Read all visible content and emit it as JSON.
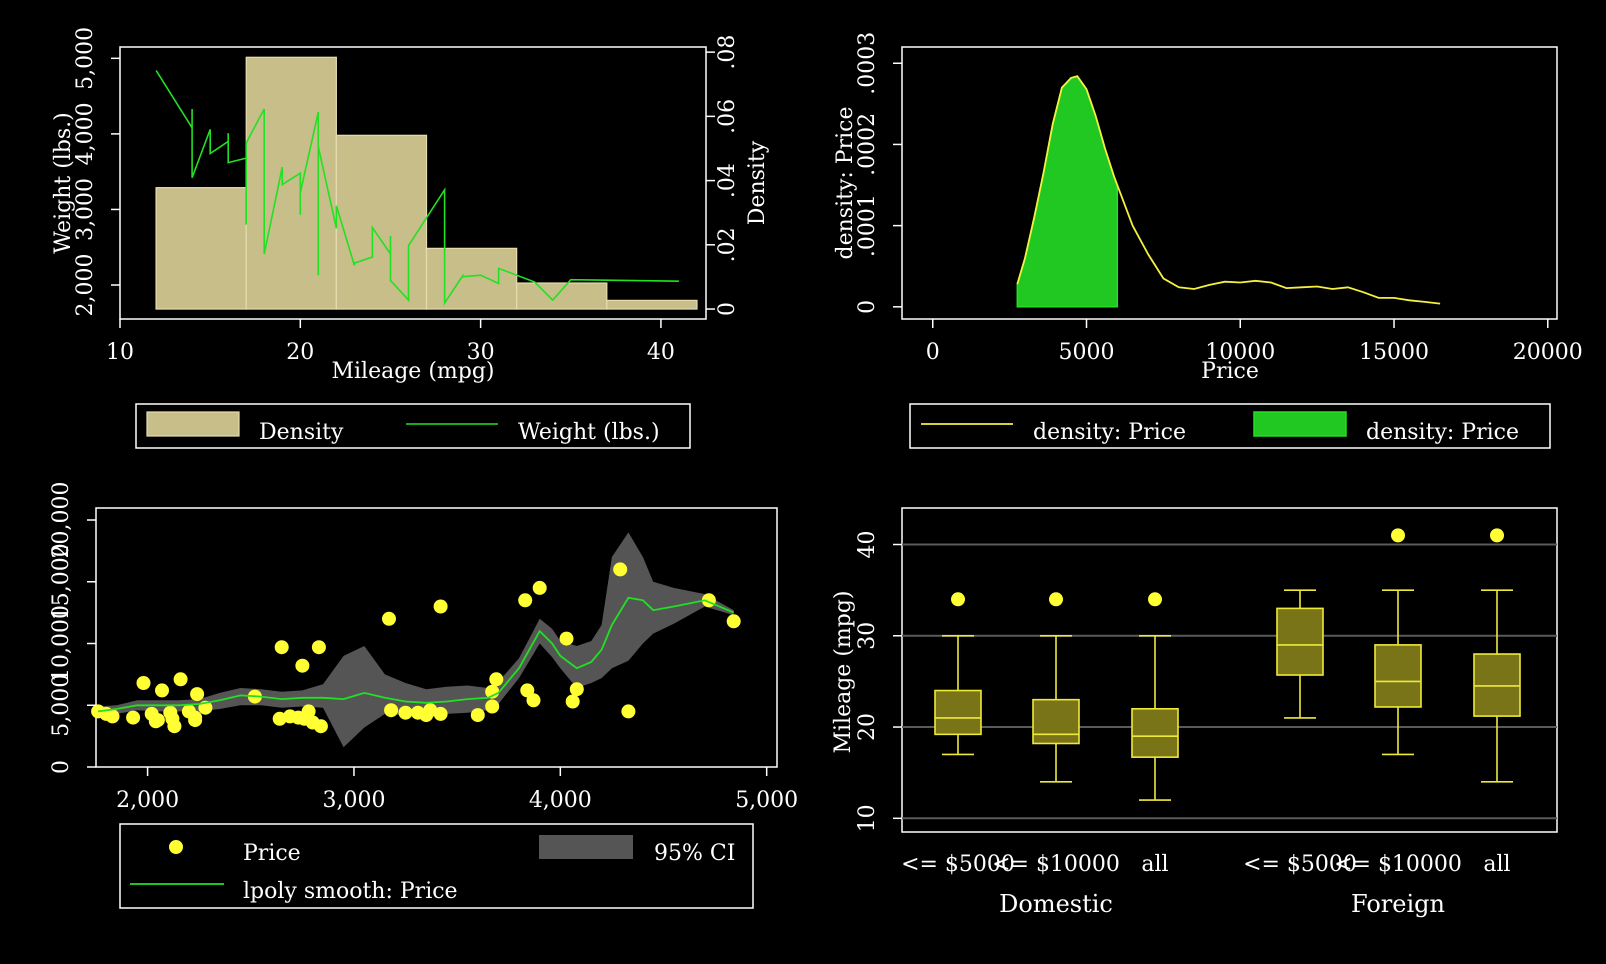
{
  "colors": {
    "background": "#000000",
    "foreground": "#ffffff",
    "hist_fill": "#c8be8a",
    "hist_stroke": "#e6dcae",
    "green": "#22e022",
    "green_fill": "#22c822",
    "yellow": "#ffff33",
    "yellow_line": "#f5f040",
    "ci_gray": "#555555",
    "box_fill": "#7a7418",
    "box_stroke": "#eeea3a",
    "gridline": "#5a5a5a"
  },
  "chart_data": [
    {
      "id": "panel1",
      "type": "bar",
      "xlabel": "Mileage (mpg)",
      "ylabel": "Weight (lbs.)",
      "y2label": "Density",
      "xlim": [
        10,
        42.5
      ],
      "ylim": [
        1550,
        5150
      ],
      "y2lim": [
        -0.0031,
        0.0816
      ],
      "xticks": [
        10,
        20,
        30,
        40
      ],
      "xtick_labels": [
        "10",
        "20",
        "30",
        "40"
      ],
      "yticks": [
        2000,
        3000,
        4000,
        5000
      ],
      "ytick_labels": [
        "2,000",
        "3,000",
        "4,000",
        "5,000"
      ],
      "y2ticks": [
        0,
        0.02,
        0.04,
        0.06,
        0.08
      ],
      "y2tick_labels": [
        "0",
        ".02",
        ".04",
        ".06",
        ".08"
      ],
      "bins": [
        {
          "x0": 12,
          "x1": 17,
          "density": 0.0378
        },
        {
          "x0": 17,
          "x1": 22,
          "density": 0.0784
        },
        {
          "x0": 22,
          "x1": 27,
          "density": 0.0541
        },
        {
          "x0": 27,
          "x1": 32,
          "density": 0.0189
        },
        {
          "x0": 32,
          "x1": 37,
          "density": 0.0081
        },
        {
          "x0": 37,
          "x1": 42,
          "density": 0.0027
        }
      ],
      "weight_line": {
        "x": [
          12,
          14,
          14,
          14,
          15,
          15,
          16,
          16,
          16,
          17,
          17,
          17,
          18,
          18,
          18,
          19,
          19,
          19,
          20,
          20,
          20,
          21,
          21,
          21,
          22,
          22,
          23,
          23,
          24,
          24,
          25,
          25,
          25,
          26,
          26,
          28,
          28,
          29,
          29,
          30,
          31,
          31,
          33,
          34,
          35,
          41
        ],
        "y": [
          4840,
          4080,
          4330,
          3420,
          4060,
          3740,
          3900,
          4010,
          3620,
          3680,
          2800,
          3880,
          4330,
          3790,
          2410,
          3560,
          3400,
          3330,
          3480,
          2930,
          3220,
          4290,
          2130,
          3830,
          2750,
          3050,
          2260,
          2290,
          2370,
          2760,
          2410,
          2650,
          2060,
          1800,
          2520,
          3260,
          1760,
          2120,
          2110,
          2130,
          2020,
          2220,
          2040,
          1800,
          2070,
          2050
        ]
      },
      "legend": [
        {
          "label": "Density",
          "kind": "patch"
        },
        {
          "label": "Weight (lbs.)",
          "kind": "line"
        }
      ]
    },
    {
      "id": "panel2",
      "type": "area",
      "xlabel": "Price",
      "ylabel": "density: Price",
      "xlim": [
        -1000,
        20300
      ],
      "ylim": [
        -1.5e-05,
        0.00032
      ],
      "xticks": [
        0,
        5000,
        10000,
        15000,
        20000
      ],
      "xtick_labels": [
        "0",
        "5000",
        "10000",
        "15000",
        "20000"
      ],
      "yticks": [
        0,
        0.0001,
        0.0002,
        0.0003
      ],
      "ytick_labels": [
        "0",
        ".0001",
        ".0002",
        ".0003"
      ],
      "density_line": {
        "x": [
          2750,
          3000,
          3300,
          3600,
          3900,
          4200,
          4500,
          4700,
          5000,
          5300,
          5600,
          5900,
          6100,
          6500,
          7000,
          7500,
          8000,
          8500,
          9000,
          9500,
          10000,
          10500,
          11000,
          11500,
          12000,
          12500,
          13000,
          13500,
          14000,
          14500,
          15000,
          15500,
          16000,
          16500
        ],
        "y": [
          2.8e-05,
          6e-05,
          0.00011,
          0.000165,
          0.000225,
          0.00027,
          0.000282,
          0.000284,
          0.000268,
          0.000235,
          0.000195,
          0.00016,
          0.00014,
          0.0001,
          6.5e-05,
          3.5e-05,
          2.4e-05,
          2.2e-05,
          2.7e-05,
          3.1e-05,
          3e-05,
          3.2e-05,
          3e-05,
          2.3e-05,
          2.4e-05,
          2.5e-05,
          2.2e-05,
          2.4e-05,
          1.8e-05,
          1.1e-05,
          1.1e-05,
          8e-06,
          6e-06,
          4e-06
        ]
      },
      "shade_range": [
        2750,
        6000
      ],
      "legend": [
        {
          "label": "density: Price",
          "kind": "line"
        },
        {
          "label": "density: Price",
          "kind": "patch"
        }
      ]
    },
    {
      "id": "panel3",
      "type": "scatter",
      "xlim": [
        1750,
        5050
      ],
      "ylim": [
        0,
        20000
      ],
      "xticks": [
        2000,
        3000,
        4000,
        5000
      ],
      "xtick_labels": [
        "2,000",
        "3,000",
        "4,000",
        "5,000"
      ],
      "yticks": [
        0,
        5000,
        10000,
        15000,
        20000
      ],
      "ytick_labels": [
        "0",
        "5,000",
        "10,000",
        "15,000",
        "20,000"
      ],
      "points": {
        "x": [
          1760,
          1800,
          1830,
          1930,
          1980,
          2020,
          2040,
          2050,
          2070,
          2110,
          2120,
          2130,
          2160,
          2200,
          2230,
          2230,
          2240,
          2280,
          2520,
          2640,
          2650,
          2690,
          2730,
          2750,
          2760,
          2780,
          2800,
          2830,
          2840,
          3170,
          3180,
          3250,
          3310,
          3350,
          3370,
          3420,
          3420,
          3600,
          3670,
          3670,
          3690,
          3830,
          3840,
          3870,
          3900,
          4030,
          4060,
          4080,
          4290,
          4330,
          4720,
          4840
        ],
        "y": [
          4500,
          4300,
          4100,
          4000,
          6800,
          4300,
          3700,
          3800,
          6200,
          4400,
          3900,
          3300,
          7100,
          4500,
          3800,
          4000,
          5900,
          4800,
          5700,
          3900,
          9700,
          4100,
          4000,
          8200,
          3900,
          4500,
          3600,
          9700,
          3300,
          12000,
          4600,
          4400,
          4400,
          4200,
          4600,
          4300,
          13000,
          4200,
          4900,
          6100,
          7100,
          13500,
          6200,
          5400,
          14500,
          10400,
          5300,
          6300,
          16000,
          4500,
          13500,
          11800
        ]
      },
      "smooth": {
        "x": [
          1760,
          1850,
          1950,
          2050,
          2150,
          2250,
          2350,
          2450,
          2550,
          2650,
          2750,
          2850,
          2950,
          3050,
          3150,
          3250,
          3350,
          3450,
          3550,
          3650,
          3700,
          3800,
          3900,
          3960,
          4000,
          4080,
          4150,
          4200,
          4250,
          4330,
          4400,
          4450,
          4550,
          4700,
          4840
        ],
        "y": [
          4500,
          4700,
          5000,
          5000,
          5000,
          5100,
          5400,
          5800,
          5700,
          5500,
          5600,
          5600,
          5500,
          6000,
          5600,
          5300,
          5200,
          5300,
          5500,
          5600,
          6000,
          8000,
          11000,
          10000,
          9000,
          8000,
          8500,
          9500,
          11500,
          13700,
          13500,
          12700,
          13000,
          13500,
          12500
        ],
        "ci_upper": [
          4900,
          5000,
          5400,
          5400,
          5400,
          5500,
          6000,
          6400,
          6300,
          6100,
          6200,
          6700,
          9000,
          9800,
          7500,
          6800,
          6300,
          6500,
          6600,
          6400,
          6900,
          8800,
          12000,
          11200,
          10200,
          9800,
          10200,
          11500,
          17000,
          19000,
          17000,
          15000,
          14500,
          14000,
          12700
        ],
        "ci_lower": [
          4100,
          4300,
          4600,
          4500,
          4500,
          4500,
          4700,
          5000,
          5000,
          4800,
          4900,
          4800,
          1600,
          3200,
          4300,
          4200,
          4200,
          4300,
          4400,
          4600,
          5100,
          7200,
          10000,
          8900,
          8000,
          6400,
          6800,
          7200,
          8000,
          8600,
          10000,
          10800,
          11600,
          13000,
          12300
        ]
      },
      "legend": [
        {
          "label": "Price",
          "kind": "marker"
        },
        {
          "label": "95% CI",
          "kind": "patch"
        },
        {
          "label": "lpoly smooth: Price",
          "kind": "line"
        }
      ]
    },
    {
      "id": "panel4",
      "type": "box",
      "ylabel": "Mileage (mpg)",
      "ylim": [
        8.5,
        44
      ],
      "yticks": [
        10,
        20,
        30,
        40
      ],
      "ytick_labels": [
        "10",
        "20",
        "30",
        "40"
      ],
      "groups": [
        {
          "name": "Domestic",
          "boxes": [
            {
              "label": "<= $5000",
              "q1": 19.2,
              "median": 21,
              "q3": 24,
              "whisker_low": 17,
              "whisker_high": 30,
              "outliers": [
                34
              ]
            },
            {
              "label": "<= $10000",
              "q1": 18.2,
              "median": 19.2,
              "q3": 23,
              "whisker_low": 14,
              "whisker_high": 30,
              "outliers": [
                34
              ]
            },
            {
              "label": "all",
              "q1": 16.7,
              "median": 19,
              "q3": 22,
              "whisker_low": 12,
              "whisker_high": 30,
              "outliers": [
                34
              ]
            }
          ]
        },
        {
          "name": "Foreign",
          "boxes": [
            {
              "label": "<= $5000",
              "q1": 25.7,
              "median": 29,
              "q3": 33,
              "whisker_low": 21,
              "whisker_high": 35,
              "outliers": []
            },
            {
              "label": "<= $10000",
              "q1": 22.2,
              "median": 25,
              "q3": 29,
              "whisker_low": 17,
              "whisker_high": 35,
              "outliers": [
                41
              ]
            },
            {
              "label": "all",
              "q1": 21.2,
              "median": 24.5,
              "q3": 28,
              "whisker_low": 14,
              "whisker_high": 35,
              "outliers": [
                41
              ]
            }
          ]
        }
      ]
    }
  ]
}
